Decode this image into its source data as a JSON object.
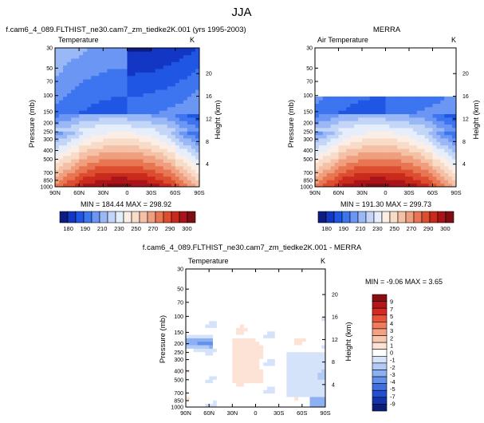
{
  "figure": {
    "title": "JJA",
    "footer_left": "",
    "footer_right": ""
  },
  "chart_data": [
    {
      "type": "heatmap",
      "id": "model",
      "title": "f.cam6_4_089.FLTHIST_ne30.cam7_zm_tiedke2K.001 (yrs 1995-2003)",
      "subtitle_left": "Temperature",
      "subtitle_right": "K",
      "ylabel": "Pressure (mb)",
      "y2label": "Height (km)",
      "x_ticks": [
        "90N",
        "60N",
        "30N",
        "0",
        "30S",
        "60S",
        "90S"
      ],
      "p_ticks": [
        "30",
        "50",
        "70",
        "100",
        "150",
        "200",
        "250",
        "300",
        "400",
        "500",
        "700",
        "850",
        "1000"
      ],
      "z_ticks": [
        "20",
        "16",
        "12",
        "8",
        "4"
      ],
      "min_max": "MIN = 184.44   MAX = 298.92",
      "colorbar": {
        "ticks": [
          "180",
          "190",
          "210",
          "230",
          "250",
          "270",
          "290",
          "300"
        ],
        "colors": [
          "#0d1c82",
          "#1336c4",
          "#1f56e3",
          "#3d74ef",
          "#6c96f3",
          "#9ab8f6",
          "#c4d6f8",
          "#e5eefa",
          "#fbeee6",
          "#f9dcc8",
          "#f5c1a6",
          "#f09f7e",
          "#e97653",
          "#dd4d2f",
          "#c92a1c",
          "#a8141a",
          "#7f0e12"
        ]
      }
    },
    {
      "type": "heatmap",
      "id": "obs",
      "title": "MERRA",
      "subtitle_left": "Air Temperature",
      "subtitle_right": "K",
      "ylabel": "Pressure (mb)",
      "y2label": "Height (km)",
      "x_ticks": [
        "90N",
        "60N",
        "30N",
        "0",
        "30S",
        "60S",
        "90S"
      ],
      "p_ticks": [
        "30",
        "50",
        "70",
        "100",
        "150",
        "200",
        "250",
        "300",
        "400",
        "500",
        "700",
        "850",
        "1000"
      ],
      "z_ticks": [
        "20",
        "16",
        "12",
        "8",
        "4"
      ],
      "data_top_pressure": 100,
      "min_max": "MIN = 191.30   MAX = 299.73",
      "colorbar": {
        "ticks": [
          "180",
          "190",
          "210",
          "230",
          "250",
          "270",
          "290",
          "300"
        ],
        "colors": [
          "#0d1c82",
          "#1336c4",
          "#1f56e3",
          "#3d74ef",
          "#6c96f3",
          "#9ab8f6",
          "#c4d6f8",
          "#e5eefa",
          "#fbeee6",
          "#f9dcc8",
          "#f5c1a6",
          "#f09f7e",
          "#e97653",
          "#dd4d2f",
          "#c92a1c",
          "#a8141a",
          "#7f0e12"
        ]
      }
    },
    {
      "type": "heatmap",
      "id": "diff",
      "title": "f.cam6_4_089.FLTHIST_ne30.cam7_zm_tiedke2K.001 - MERRA",
      "subtitle_left": "Temperature",
      "subtitle_right": "K",
      "ylabel": "Pressure (mb)",
      "y2label": "Height (km)",
      "x_ticks": [
        "90N",
        "60N",
        "30N",
        "0",
        "30S",
        "60S",
        "90S"
      ],
      "p_ticks": [
        "30",
        "50",
        "70",
        "100",
        "150",
        "200",
        "250",
        "300",
        "400",
        "500",
        "700",
        "850",
        "1000"
      ],
      "z_ticks": [
        "20",
        "16",
        "12",
        "8",
        "4"
      ],
      "data_top_pressure": 100,
      "min_max": "MIN = -9.06   MAX =  3.65",
      "colorbar": {
        "ticks": [
          "9",
          "7",
          "5",
          "4",
          "3",
          "2",
          "1",
          "0",
          "-1",
          "-2",
          "-3",
          "-4",
          "-5",
          "-7",
          "-9"
        ],
        "colors": [
          "#8c0d10",
          "#b5161b",
          "#d42a22",
          "#e8533a",
          "#f07b5a",
          "#f5a183",
          "#f9c6ae",
          "#fce3d6",
          "#ffffff",
          "#d5e3fa",
          "#b2cbf6",
          "#8cb0f1",
          "#6390ea",
          "#3f6fe0",
          "#2350cf",
          "#1434ab",
          "#0b1f7a"
        ]
      }
    }
  ]
}
